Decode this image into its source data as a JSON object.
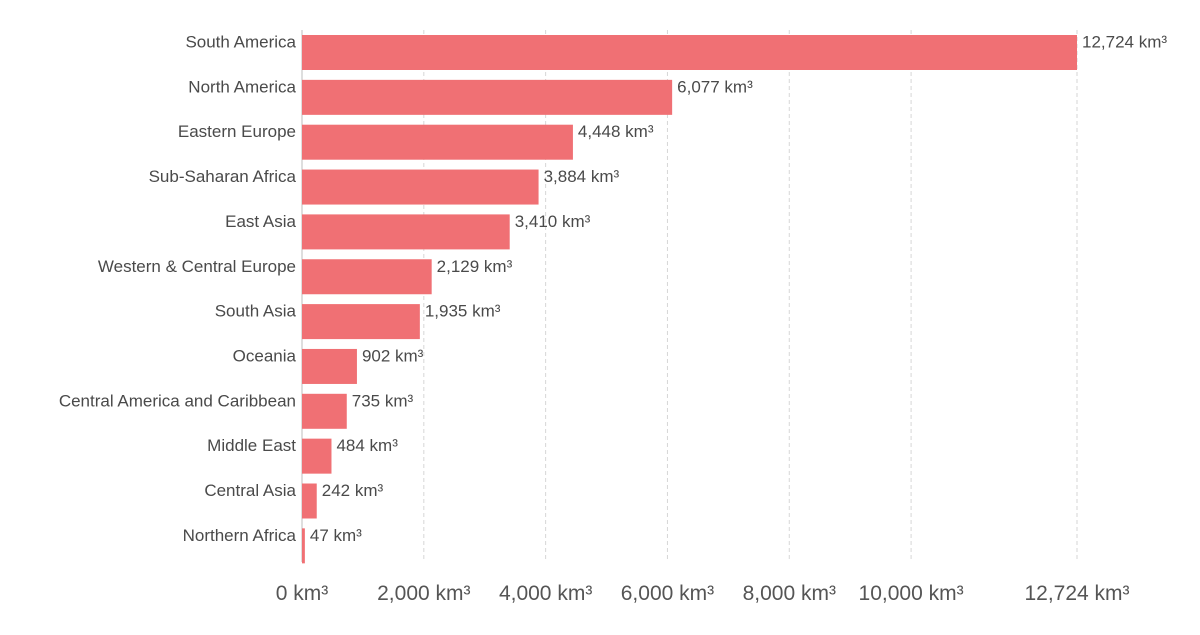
{
  "chart_data": {
    "type": "bar",
    "orientation": "horizontal",
    "unit": "km³",
    "categories": [
      "South America",
      "North America",
      "Eastern Europe",
      "Sub-Saharan Africa",
      "East Asia",
      "Western & Central Europe",
      "South Asia",
      "Oceania",
      "Central America and Caribbean",
      "Middle East",
      "Central Asia",
      "Northern Africa"
    ],
    "values": [
      12724,
      6077,
      4448,
      3884,
      3410,
      2129,
      1935,
      902,
      735,
      484,
      242,
      47
    ],
    "value_labels": [
      "12,724 km³",
      "6,077 km³",
      "4,448 km³",
      "3,884 km³",
      "3,410 km³",
      "2,129 km³",
      "1,935 km³",
      "902 km³",
      "735 km³",
      "484 km³",
      "242 km³",
      "47 km³"
    ],
    "xticks": [
      0,
      2000,
      4000,
      6000,
      8000,
      10000,
      12724
    ],
    "xtick_labels": [
      "0 km³",
      "2,000 km³",
      "4,000 km³",
      "6,000 km³",
      "8,000 km³",
      "10,000 km³",
      "12,724 km³"
    ],
    "xlim": [
      0,
      12724
    ],
    "grid": "vertical dashed",
    "legend": "none",
    "bar_color": "#f07074"
  }
}
